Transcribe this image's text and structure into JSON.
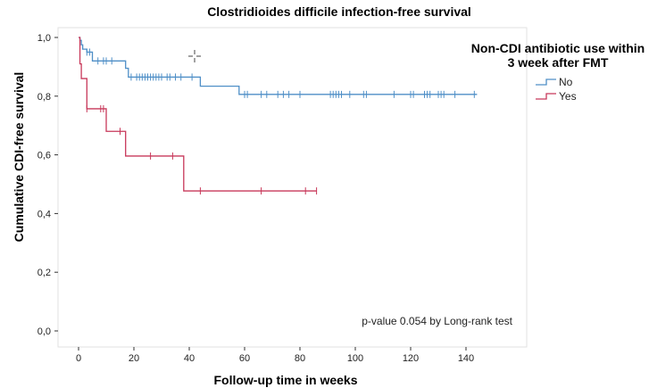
{
  "chart_data": {
    "type": "line",
    "subtype": "kaplan-meier",
    "title": "Clostridioides difficile infection-free survival",
    "xlabel": "Follow-up time in weeks",
    "ylabel": "Cumulative CDI-free survival",
    "xlim": [
      -8,
      150
    ],
    "ylim": [
      0,
      1.05
    ],
    "x_ticks": [
      0,
      20,
      40,
      60,
      80,
      100,
      120,
      140
    ],
    "y_ticks": [
      0.0,
      0.2,
      0.4,
      0.6,
      0.8,
      1.0
    ],
    "y_tick_labels": [
      "0,0",
      "0,2",
      "0,4",
      "0,6",
      "0,8",
      "1,0"
    ],
    "grid": false,
    "legend": {
      "title_lines": [
        "Non-CDI antibiotic use within",
        "3 week after FMT"
      ],
      "placement": "top-right"
    },
    "annotation": "p-value 0.054 by Long-rank test",
    "series": [
      {
        "name": "No",
        "color": "#4f8fc7",
        "steps": [
          [
            0,
            1.0
          ],
          [
            0.5,
            0.99
          ],
          [
            1,
            0.975
          ],
          [
            1.5,
            0.96
          ],
          [
            3,
            0.95
          ],
          [
            5,
            0.92
          ],
          [
            17,
            0.895
          ],
          [
            18,
            0.865
          ],
          [
            44,
            0.834
          ],
          [
            58,
            0.806
          ],
          [
            144,
            0.806
          ]
        ],
        "censored": [
          [
            3,
            0.95
          ],
          [
            4,
            0.95
          ],
          [
            7,
            0.92
          ],
          [
            9,
            0.92
          ],
          [
            10,
            0.92
          ],
          [
            12,
            0.92
          ],
          [
            19,
            0.865
          ],
          [
            21,
            0.865
          ],
          [
            22,
            0.865
          ],
          [
            23,
            0.865
          ],
          [
            24,
            0.865
          ],
          [
            25,
            0.865
          ],
          [
            26,
            0.865
          ],
          [
            27,
            0.865
          ],
          [
            28,
            0.865
          ],
          [
            29,
            0.865
          ],
          [
            30,
            0.865
          ],
          [
            32,
            0.865
          ],
          [
            33,
            0.865
          ],
          [
            35,
            0.865
          ],
          [
            37,
            0.865
          ],
          [
            41,
            0.865
          ],
          [
            60,
            0.806
          ],
          [
            61,
            0.806
          ],
          [
            66,
            0.806
          ],
          [
            68,
            0.806
          ],
          [
            72,
            0.806
          ],
          [
            74,
            0.806
          ],
          [
            76,
            0.806
          ],
          [
            80,
            0.806
          ],
          [
            91,
            0.806
          ],
          [
            92,
            0.806
          ],
          [
            93,
            0.806
          ],
          [
            94,
            0.806
          ],
          [
            95,
            0.806
          ],
          [
            98,
            0.806
          ],
          [
            103,
            0.806
          ],
          [
            104,
            0.806
          ],
          [
            114,
            0.806
          ],
          [
            120,
            0.806
          ],
          [
            121,
            0.806
          ],
          [
            125,
            0.806
          ],
          [
            126,
            0.806
          ],
          [
            127,
            0.806
          ],
          [
            130,
            0.806
          ],
          [
            131,
            0.806
          ],
          [
            132,
            0.806
          ],
          [
            136,
            0.806
          ],
          [
            143,
            0.806
          ]
        ]
      },
      {
        "name": "Yes",
        "color": "#c8385a",
        "steps": [
          [
            0,
            1.0
          ],
          [
            0.5,
            0.91
          ],
          [
            1,
            0.86
          ],
          [
            3,
            0.757
          ],
          [
            10,
            0.68
          ],
          [
            17,
            0.596
          ],
          [
            38,
            0.477
          ],
          [
            86,
            0.477
          ]
        ],
        "censored": [
          [
            3,
            0.757
          ],
          [
            8,
            0.757
          ],
          [
            9,
            0.757
          ],
          [
            15,
            0.68
          ],
          [
            26,
            0.596
          ],
          [
            34,
            0.596
          ],
          [
            44,
            0.477
          ],
          [
            66,
            0.477
          ],
          [
            82,
            0.477
          ],
          [
            86,
            0.477
          ]
        ]
      }
    ]
  }
}
